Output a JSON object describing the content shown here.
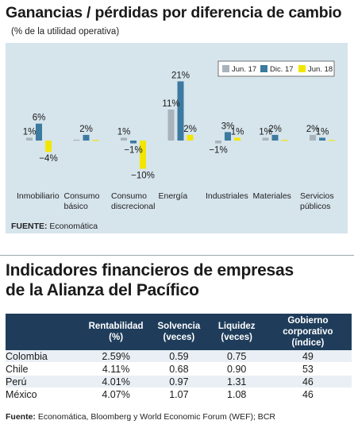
{
  "chart": {
    "title": "Ganancias / pérdidas por diferencia de cambio",
    "subtitle": "(% de la utilidad operativa)",
    "source_label": "FUENTE:",
    "source_text": "Economática"
  },
  "chart_data": {
    "type": "bar",
    "categories": [
      [
        "Inmobiliario"
      ],
      [
        "Consumo",
        "básico"
      ],
      [
        "Consumo",
        "discrecional"
      ],
      [
        "Energía"
      ],
      [
        "Industriales"
      ],
      [
        "Materiales"
      ],
      [
        "Servicios",
        "públicos"
      ]
    ],
    "series": [
      {
        "name": "Jun. 17",
        "color": "#a9b3bb",
        "values": [
          1,
          0.3,
          1,
          11,
          -1,
          1,
          2
        ]
      },
      {
        "name": "Dic. 17",
        "color": "#3c7aa0",
        "values": [
          6,
          2,
          -1,
          21,
          3,
          2,
          1
        ]
      },
      {
        "name": "Jun. 18",
        "color": "#f2e600",
        "values": [
          -4,
          0.2,
          -10,
          2,
          1,
          0.2,
          0.2
        ]
      }
    ],
    "labels": [
      {
        "cat": 0,
        "ser": 0,
        "text": "1%"
      },
      {
        "cat": 0,
        "ser": 1,
        "text": "6%"
      },
      {
        "cat": 0,
        "ser": 2,
        "text": "−4%"
      },
      {
        "cat": 1,
        "ser": 1,
        "text": "2%"
      },
      {
        "cat": 2,
        "ser": 0,
        "text": "1%"
      },
      {
        "cat": 2,
        "ser": 1,
        "text": "−1%"
      },
      {
        "cat": 2,
        "ser": 2,
        "text": "−10%"
      },
      {
        "cat": 3,
        "ser": 0,
        "text": "11%"
      },
      {
        "cat": 3,
        "ser": 1,
        "text": "21%"
      },
      {
        "cat": 3,
        "ser": 2,
        "text": "2%"
      },
      {
        "cat": 4,
        "ser": 0,
        "text": "−1%"
      },
      {
        "cat": 4,
        "ser": 1,
        "text": "3%"
      },
      {
        "cat": 4,
        "ser": 2,
        "text": "1%"
      },
      {
        "cat": 5,
        "ser": 0,
        "text": "1%"
      },
      {
        "cat": 5,
        "ser": 1,
        "text": "2%"
      },
      {
        "cat": 6,
        "ser": 0,
        "text": "2%"
      },
      {
        "cat": 6,
        "ser": 1,
        "text": "1%"
      }
    ],
    "ylim": [
      -11,
      22
    ],
    "legend_position": "top-right",
    "grid": false
  },
  "table": {
    "title_line1": "Indicadores financieros de empresas",
    "title_line2": "de la Alianza del Pacífico",
    "headers": [
      "",
      "Rentabilidad (%)",
      "Solvencia (veces)",
      "Liquidez (veces)",
      "Gobierno corporativo (índice)"
    ],
    "rows": [
      {
        "country": "Colombia",
        "rentabilidad": "2.59%",
        "solvencia": "0.59",
        "liquidez": "0.75",
        "gobierno": "49"
      },
      {
        "country": "Chile",
        "rentabilidad": "4.11%",
        "solvencia": "0.68",
        "liquidez": "0.90",
        "gobierno": "53"
      },
      {
        "country": "Perú",
        "rentabilidad": "4.01%",
        "solvencia": "0.97",
        "liquidez": "1.31",
        "gobierno": "46"
      },
      {
        "country": "México",
        "rentabilidad": "4.07%",
        "solvencia": "1.07",
        "liquidez": "1.08",
        "gobierno": "46"
      }
    ],
    "source_label": "Fuente:",
    "source_text": "Economática, Bloomberg y World Economic Forum (WEF); BCR"
  }
}
